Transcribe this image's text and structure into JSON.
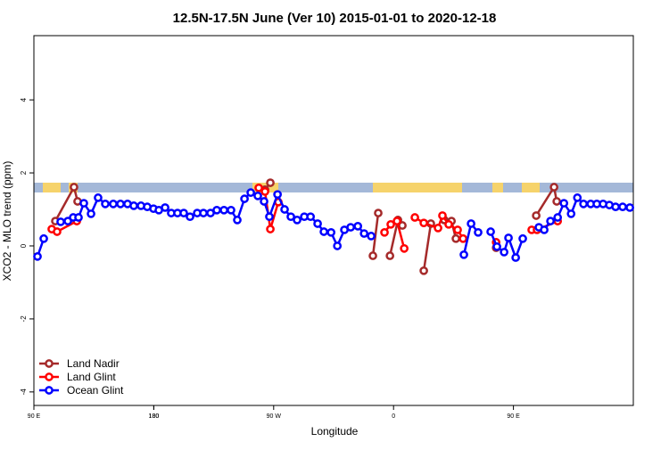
{
  "chart_data": {
    "type": "line",
    "title": "12.5N-17.5N June (Ver 10)   2015-01-01 to 2020-12-18",
    "x_label": "Longitude",
    "y_label": "XCO2 - MLO trend (ppm)",
    "xlim": [
      90,
      540
    ],
    "ylim": [
      -4.37,
      5.76
    ],
    "xticks": [
      {
        "value": 90,
        "label": "90 E"
      },
      180,
      {
        "value": 270,
        "label": "90 W"
      },
      {
        "value": 360,
        "label": "0"
      },
      {
        "value": 450,
        "label": "90 E"
      },
      180.0001
    ],
    "yticks": [
      -4,
      -2,
      0,
      2,
      4
    ],
    "legend": "bottom-left",
    "series": [
      {
        "name": "Land Nadir",
        "color": "#a52a2a",
        "x": [
          106.1,
          120.1,
          122.8,
          null,
          263.5,
          267.5,
          null,
          344.5,
          348.5,
          null,
          357.3,
          363.3,
          366.6,
          null,
          382.7,
          388,
          null,
          398.1,
          403.5,
          406.8,
          null,
          437,
          null,
          467.1,
          480.5,
          482.5
        ],
        "values": [
          0.68,
          1.61,
          1.22,
          null,
          1.54,
          1.73,
          null,
          -0.27,
          0.9,
          null,
          -0.27,
          0.71,
          0.56,
          null,
          -0.68,
          0.61,
          null,
          0.71,
          0.68,
          0.2,
          null,
          -0.05,
          null,
          0.83,
          1.61,
          1.22
        ]
      },
      {
        "name": "Land Glint",
        "color": "#ff0000",
        "x": [
          103.4,
          107.4,
          122.2,
          null,
          258.8,
          263.5,
          267.5,
          273.5,
          null,
          353.2,
          357.9,
          362.6,
          368,
          null,
          376,
          382.7,
          393.4,
          396.7,
          401.4,
          408.1,
          412.2,
          null,
          437,
          null,
          463.7,
          467.7,
          483.2
        ],
        "values": [
          0.46,
          0.39,
          0.68,
          null,
          1.59,
          1.49,
          0.46,
          1.2,
          null,
          0.37,
          0.59,
          0.68,
          -0.07,
          null,
          0.78,
          0.63,
          0.49,
          0.83,
          0.59,
          0.44,
          0.2,
          null,
          0.1,
          null,
          0.44,
          0.44,
          0.68
        ]
      },
      {
        "name": "Ocean Glint",
        "color": "#0000ff",
        "x": [
          92.7,
          97.4,
          null,
          110.1,
          115.5,
          119.5,
          123.5,
          127.5,
          132.9,
          138.2,
          143.6,
          149.6,
          155,
          160.3,
          165,
          170.4,
          175.1,
          179.8,
          183.8,
          188.5,
          193.1,
          197.8,
          202.5,
          207.2,
          212.6,
          217.3,
          222.6,
          227.3,
          232.7,
          238,
          242.7,
          248.1,
          252.8,
          258.1,
          262.8,
          266.8,
          272.9,
          278.2,
          282.9,
          287.6,
          293,
          297.7,
          303,
          307.7,
          313.1,
          317.8,
          323.1,
          327.8,
          333.2,
          337.9,
          343.2,
          null,
          412.8,
          418.2,
          423.5,
          null,
          432.9,
          437.6,
          443,
          446.3,
          451.7,
          457,
          null,
          469.1,
          473.1,
          477.8,
          483.2,
          487.9,
          493.3,
          498,
          502.6,
          508,
          512.6,
          517.3,
          522,
          526.7,
          532,
          537.4
        ],
        "values": [
          -0.29,
          0.2,
          null,
          0.66,
          0.68,
          0.78,
          0.78,
          1.17,
          0.88,
          1.32,
          1.15,
          1.15,
          1.15,
          1.15,
          1.1,
          1.1,
          1.07,
          1.02,
          0.98,
          1.05,
          0.9,
          0.9,
          0.9,
          0.8,
          0.9,
          0.9,
          0.9,
          0.98,
          0.98,
          0.98,
          0.71,
          1.29,
          1.46,
          1.37,
          1.22,
          0.8,
          1.41,
          1.0,
          0.8,
          0.71,
          0.8,
          0.8,
          0.61,
          0.39,
          0.37,
          0,
          0.44,
          0.51,
          0.54,
          0.34,
          0.27,
          null,
          -0.24,
          0.61,
          0.37,
          null,
          0.39,
          -0.02,
          -0.17,
          0.22,
          -0.32,
          0.2,
          null,
          0.51,
          0.44,
          0.68,
          0.78,
          1.17,
          0.88,
          1.32,
          1.15,
          1.15,
          1.15,
          1.15,
          1.12,
          1.07,
          1.07,
          1.05
        ]
      }
    ]
  }
}
